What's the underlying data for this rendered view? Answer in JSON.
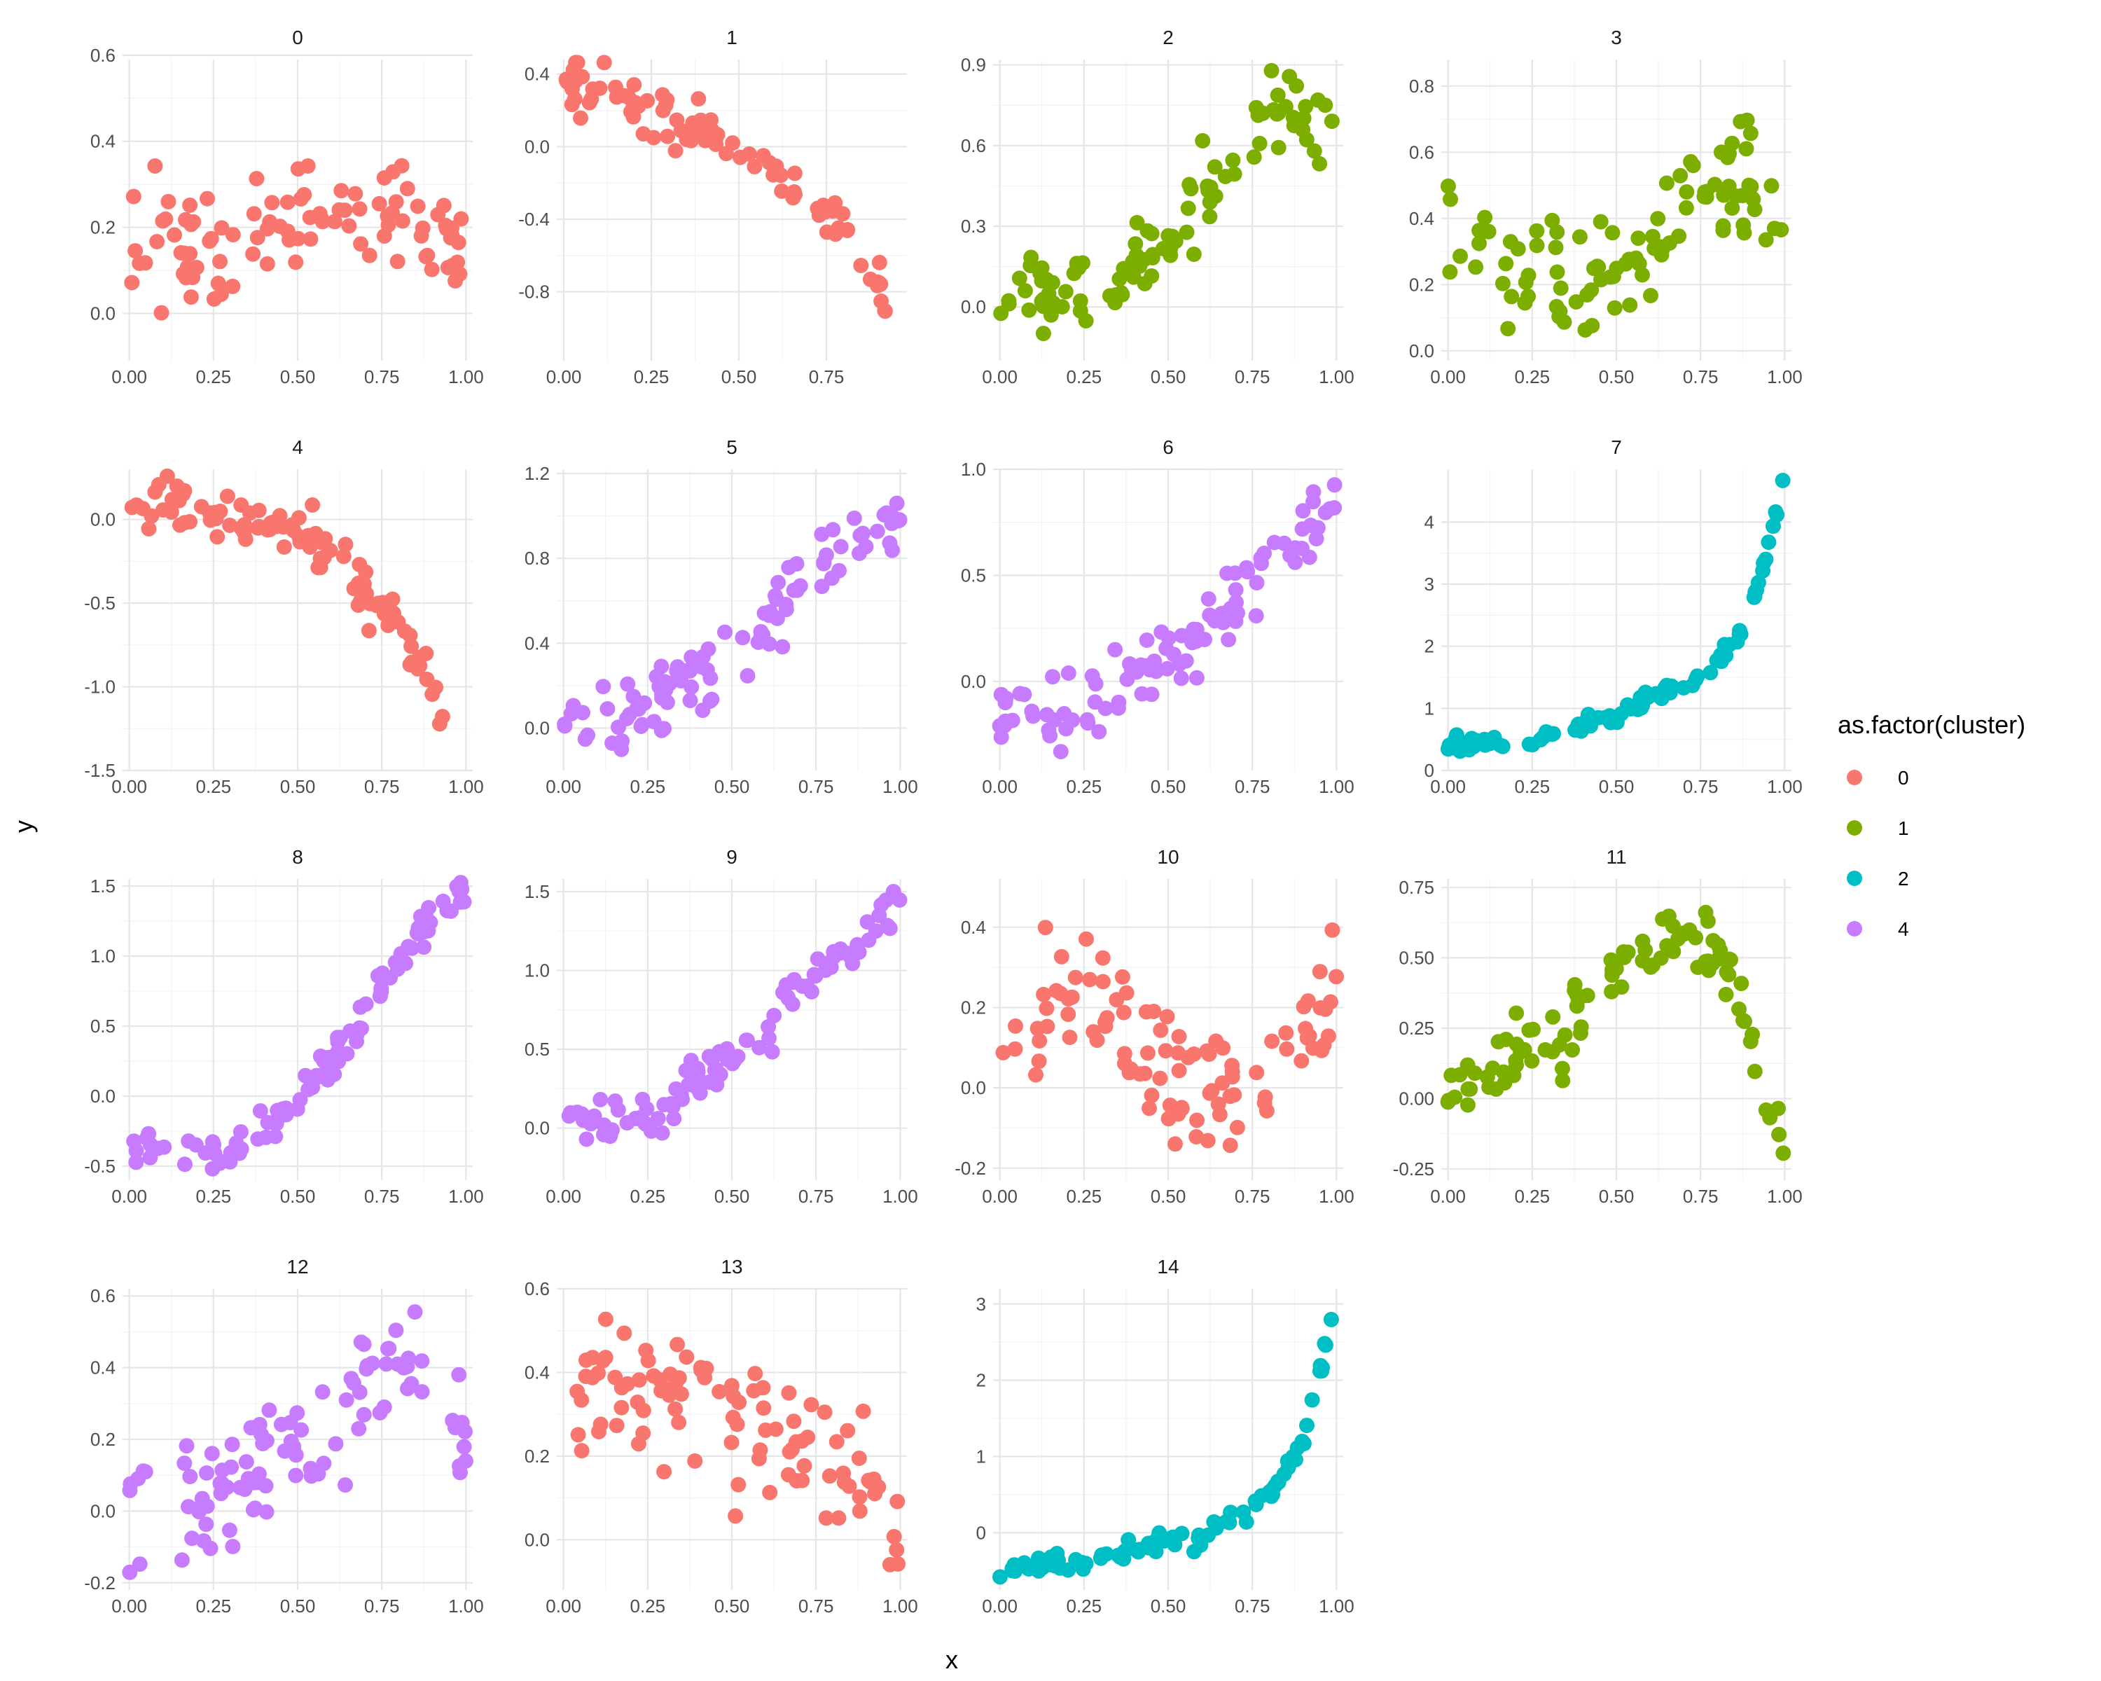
{
  "chart_data": {
    "type": "scatter",
    "layout": "facet-wrap",
    "ncol": 4,
    "xlabel": "x",
    "ylabel": "y",
    "legend": {
      "title": "as.factor(cluster)",
      "position": "right",
      "entries": [
        {
          "label": "0",
          "color": "#F8766D"
        },
        {
          "label": "1",
          "color": "#7CAE00"
        },
        {
          "label": "2",
          "color": "#00BFC4"
        },
        {
          "label": "4",
          "color": "#C77CFF"
        }
      ]
    },
    "grid": true,
    "theme": "minimal",
    "panels": [
      {
        "label": "0",
        "cluster": "0",
        "xlim": [
          -0.02,
          1.02
        ],
        "ylim": [
          -0.11,
          0.59
        ],
        "xticks": [
          0,
          0.25,
          0.5,
          0.75,
          1
        ],
        "xtick_labels": [
          "0.00",
          "0.25",
          "0.50",
          "0.75",
          "1.00"
        ],
        "yticks": [
          0,
          0.2,
          0.4,
          0.6
        ],
        "ytick_labels": [
          "0.0",
          "0.2",
          "0.4",
          "0.6"
        ],
        "trend": [
          [
            0,
            0.2
          ],
          [
            0.2,
            0.15
          ],
          [
            0.4,
            0.17
          ],
          [
            0.6,
            0.25
          ],
          [
            0.8,
            0.28
          ],
          [
            1,
            0.12
          ]
        ],
        "noise": 0.07
      },
      {
        "label": "1",
        "cluster": "0",
        "xlim": [
          -0.02,
          0.98
        ],
        "ylim": [
          -1.18,
          0.48
        ],
        "xticks": [
          0,
          0.25,
          0.5,
          0.75
        ],
        "xtick_labels": [
          "0.00",
          "0.25",
          "0.50",
          "0.75"
        ],
        "yticks": [
          -0.8,
          -0.4,
          0,
          0.4
        ],
        "ytick_labels": [
          "-0.8",
          "-0.4",
          "0.0",
          "0.4"
        ],
        "trend": [
          [
            0,
            0.35
          ],
          [
            0.2,
            0.22
          ],
          [
            0.45,
            0.05
          ],
          [
            0.6,
            -0.15
          ],
          [
            0.8,
            -0.45
          ],
          [
            0.95,
            -0.95
          ]
        ],
        "noise": 0.07
      },
      {
        "label": "2",
        "cluster": "1",
        "xlim": [
          -0.02,
          1.02
        ],
        "ylim": [
          -0.2,
          0.92
        ],
        "xticks": [
          0,
          0.25,
          0.5,
          0.75,
          1
        ],
        "xtick_labels": [
          "0.00",
          "0.25",
          "0.50",
          "0.75",
          "1.00"
        ],
        "yticks": [
          0,
          0.3,
          0.6,
          0.9
        ],
        "ytick_labels": [
          "0.0",
          "0.3",
          "0.6",
          "0.9"
        ],
        "trend": [
          [
            0,
            0.05
          ],
          [
            0.3,
            0.05
          ],
          [
            0.5,
            0.25
          ],
          [
            0.8,
            0.72
          ],
          [
            0.9,
            0.72
          ],
          [
            1,
            0.55
          ]
        ],
        "noise": 0.08
      },
      {
        "label": "3",
        "cluster": "1",
        "xlim": [
          -0.02,
          1.02
        ],
        "ylim": [
          -0.03,
          0.88
        ],
        "xticks": [
          0,
          0.25,
          0.5,
          0.75,
          1
        ],
        "xtick_labels": [
          "0.00",
          "0.25",
          "0.50",
          "0.75",
          "1.00"
        ],
        "yticks": [
          0,
          0.2,
          0.4,
          0.6,
          0.8
        ],
        "ytick_labels": [
          "0.0",
          "0.2",
          "0.4",
          "0.6",
          "0.8"
        ],
        "trend": [
          [
            0,
            0.35
          ],
          [
            0.3,
            0.22
          ],
          [
            0.55,
            0.26
          ],
          [
            0.75,
            0.55
          ],
          [
            0.9,
            0.55
          ],
          [
            1,
            0.35
          ]
        ],
        "noise": 0.09
      },
      {
        "label": "4",
        "cluster": "0",
        "xlim": [
          -0.02,
          1.02
        ],
        "ylim": [
          -1.5,
          0.3
        ],
        "xticks": [
          0,
          0.25,
          0.5,
          0.75,
          1
        ],
        "xtick_labels": [
          "0.00",
          "0.25",
          "0.50",
          "0.75",
          "1.00"
        ],
        "yticks": [
          -1.5,
          -1,
          -0.5,
          0
        ],
        "ytick_labels": [
          "-1.5",
          "-1.0",
          "-0.5",
          "0.0"
        ],
        "trend": [
          [
            0,
            0.12
          ],
          [
            0.4,
            0.0
          ],
          [
            0.6,
            -0.2
          ],
          [
            0.75,
            -0.55
          ],
          [
            0.9,
            -0.95
          ],
          [
            1,
            -1.4
          ]
        ],
        "noise": 0.08
      },
      {
        "label": "5",
        "cluster": "4",
        "xlim": [
          -0.02,
          1.02
        ],
        "ylim": [
          -0.2,
          1.22
        ],
        "xticks": [
          0,
          0.25,
          0.5,
          0.75,
          1
        ],
        "xtick_labels": [
          "0.00",
          "0.25",
          "0.50",
          "0.75",
          "1.00"
        ],
        "yticks": [
          0,
          0.4,
          0.8,
          1.2
        ],
        "ytick_labels": [
          "0.0",
          "0.4",
          "0.8",
          "1.2"
        ],
        "trend": [
          [
            0,
            0.0
          ],
          [
            0.3,
            0.15
          ],
          [
            0.6,
            0.45
          ],
          [
            0.75,
            0.8
          ],
          [
            1,
            1.0
          ]
        ],
        "noise": 0.08
      },
      {
        "label": "6",
        "cluster": "4",
        "xlim": [
          -0.02,
          1.02
        ],
        "ylim": [
          -0.42,
          1.0
        ],
        "xticks": [
          0,
          0.25,
          0.5,
          0.75,
          1
        ],
        "xtick_labels": [
          "0.00",
          "0.25",
          "0.50",
          "0.75",
          "1.00"
        ],
        "yticks": [
          0,
          0.5,
          1
        ],
        "ytick_labels": [
          "0.0",
          "0.5",
          "1.0"
        ],
        "trend": [
          [
            0,
            -0.2
          ],
          [
            0.3,
            -0.1
          ],
          [
            0.6,
            0.25
          ],
          [
            0.8,
            0.5
          ],
          [
            1,
            0.88
          ]
        ],
        "noise": 0.09
      },
      {
        "label": "7",
        "cluster": "2",
        "xlim": [
          -0.02,
          1.02
        ],
        "ylim": [
          0,
          4.85
        ],
        "xticks": [
          0,
          0.25,
          0.5,
          0.75,
          1
        ],
        "xtick_labels": [
          "0.00",
          "0.25",
          "0.50",
          "0.75",
          "1.00"
        ],
        "yticks": [
          0,
          1,
          2,
          3,
          4
        ],
        "ytick_labels": [
          "0",
          "1",
          "2",
          "3",
          "4"
        ],
        "trend": [
          [
            0,
            0.4
          ],
          [
            0.25,
            0.5
          ],
          [
            0.5,
            0.9
          ],
          [
            0.75,
            1.5
          ],
          [
            0.88,
            2.3
          ],
          [
            0.95,
            3.5
          ],
          [
            1,
            4.8
          ]
        ],
        "noise": 0.06
      },
      {
        "label": "8",
        "cluster": "4",
        "xlim": [
          -0.02,
          1.02
        ],
        "ylim": [
          -0.6,
          1.55
        ],
        "xticks": [
          0,
          0.25,
          0.5,
          0.75,
          1
        ],
        "xtick_labels": [
          "0.00",
          "0.25",
          "0.50",
          "0.75",
          "1.00"
        ],
        "yticks": [
          -0.5,
          0,
          0.5,
          1,
          1.5
        ],
        "ytick_labels": [
          "-0.5",
          "0.0",
          "0.5",
          "1.0",
          "1.5"
        ],
        "trend": [
          [
            0,
            -0.35
          ],
          [
            0.3,
            -0.4
          ],
          [
            0.5,
            -0.05
          ],
          [
            0.7,
            0.55
          ],
          [
            0.85,
            1.15
          ],
          [
            1,
            1.48
          ]
        ],
        "noise": 0.07
      },
      {
        "label": "9",
        "cluster": "4",
        "xlim": [
          -0.02,
          1.02
        ],
        "ylim": [
          -0.33,
          1.58
        ],
        "xticks": [
          0,
          0.25,
          0.5,
          0.75,
          1
        ],
        "xtick_labels": [
          "0.00",
          "0.25",
          "0.50",
          "0.75",
          "1.00"
        ],
        "yticks": [
          0,
          0.5,
          1,
          1.5
        ],
        "ytick_labels": [
          "0.0",
          "0.5",
          "1.0",
          "1.5"
        ],
        "trend": [
          [
            0,
            0.05
          ],
          [
            0.25,
            0.08
          ],
          [
            0.5,
            0.45
          ],
          [
            0.7,
            0.9
          ],
          [
            1,
            1.38
          ]
        ],
        "noise": 0.07
      },
      {
        "label": "10",
        "cluster": "0",
        "xlim": [
          -0.02,
          1.02
        ],
        "ylim": [
          -0.23,
          0.52
        ],
        "xticks": [
          0,
          0.25,
          0.5,
          0.75,
          1
        ],
        "xtick_labels": [
          "0.00",
          "0.25",
          "0.50",
          "0.75",
          "1.00"
        ],
        "yticks": [
          -0.2,
          0,
          0.2,
          0.4
        ],
        "ytick_labels": [
          "-0.2",
          "0.0",
          "0.2",
          "0.4"
        ],
        "trend": [
          [
            0,
            0.2
          ],
          [
            0.25,
            0.25
          ],
          [
            0.5,
            0.05
          ],
          [
            0.7,
            0.0
          ],
          [
            0.9,
            0.1
          ],
          [
            1,
            0.35
          ]
        ],
        "noise": 0.08
      },
      {
        "label": "11",
        "cluster": "1",
        "xlim": [
          -0.02,
          1.02
        ],
        "ylim": [
          -0.29,
          0.78
        ],
        "xticks": [
          0,
          0.25,
          0.5,
          0.75,
          1
        ],
        "xtick_labels": [
          "0.00",
          "0.25",
          "0.50",
          "0.75",
          "1.00"
        ],
        "yticks": [
          -0.25,
          0,
          0.25,
          0.5,
          0.75
        ],
        "ytick_labels": [
          "-0.25",
          "0.00",
          "0.25",
          "0.50",
          "0.75"
        ],
        "trend": [
          [
            0,
            0.0
          ],
          [
            0.3,
            0.2
          ],
          [
            0.5,
            0.45
          ],
          [
            0.7,
            0.6
          ],
          [
            0.85,
            0.45
          ],
          [
            1,
            -0.22
          ]
        ],
        "noise": 0.06
      },
      {
        "label": "12",
        "cluster": "4",
        "xlim": [
          -0.02,
          1.02
        ],
        "ylim": [
          -0.22,
          0.62
        ],
        "xticks": [
          0,
          0.25,
          0.5,
          0.75,
          1
        ],
        "xtick_labels": [
          "0.00",
          "0.25",
          "0.50",
          "0.75",
          "1.00"
        ],
        "yticks": [
          -0.2,
          0,
          0.2,
          0.4,
          0.6
        ],
        "ytick_labels": [
          "-0.2",
          "0.0",
          "0.2",
          "0.4",
          "0.6"
        ],
        "trend": [
          [
            0,
            0.0
          ],
          [
            0.25,
            0.05
          ],
          [
            0.5,
            0.15
          ],
          [
            0.7,
            0.35
          ],
          [
            0.85,
            0.42
          ],
          [
            1,
            0.2
          ]
        ],
        "noise": 0.08
      },
      {
        "label": "13",
        "cluster": "0",
        "xlim": [
          -0.02,
          1.02
        ],
        "ylim": [
          -0.12,
          0.6
        ],
        "xticks": [
          0,
          0.25,
          0.5,
          0.75,
          1
        ],
        "xtick_labels": [
          "0.00",
          "0.25",
          "0.50",
          "0.75",
          "1.00"
        ],
        "yticks": [
          0,
          0.2,
          0.4,
          0.6
        ],
        "ytick_labels": [
          "0.0",
          "0.2",
          "0.4",
          "0.6"
        ],
        "trend": [
          [
            0,
            0.38
          ],
          [
            0.3,
            0.35
          ],
          [
            0.6,
            0.28
          ],
          [
            0.8,
            0.18
          ],
          [
            1,
            0.05
          ]
        ],
        "noise": 0.09
      },
      {
        "label": "14",
        "cluster": "2",
        "xlim": [
          -0.02,
          1.02
        ],
        "ylim": [
          -0.75,
          3.2
        ],
        "xticks": [
          0,
          0.25,
          0.5,
          0.75,
          1
        ],
        "xtick_labels": [
          "0.00",
          "0.25",
          "0.50",
          "0.75",
          "1.00"
        ],
        "yticks": [
          0,
          1,
          2,
          3
        ],
        "ytick_labels": [
          "0",
          "1",
          "2",
          "3"
        ],
        "trend": [
          [
            0,
            -0.5
          ],
          [
            0.3,
            -0.3
          ],
          [
            0.6,
            -0.05
          ],
          [
            0.8,
            0.5
          ],
          [
            0.9,
            1.2
          ],
          [
            0.95,
            2.1
          ],
          [
            1,
            3.05
          ]
        ],
        "noise": 0.06
      }
    ]
  }
}
